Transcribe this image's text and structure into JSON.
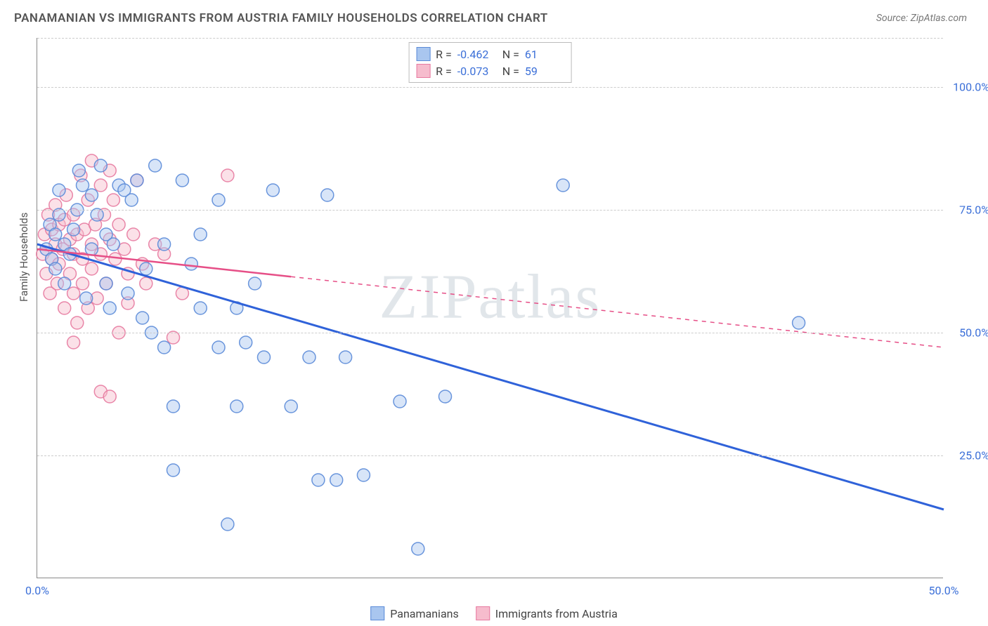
{
  "title": "PANAMANIAN VS IMMIGRANTS FROM AUSTRIA FAMILY HOUSEHOLDS CORRELATION CHART",
  "source": "Source: ZipAtlas.com",
  "ylabel": "Family Households",
  "watermark": "ZIPatlas",
  "chart": {
    "type": "scatter",
    "background_color": "#ffffff",
    "grid_color": "#cccccc",
    "axis_color": "#888888",
    "xlim": [
      0,
      50
    ],
    "ylim": [
      0,
      110
    ],
    "x_ticks": [
      {
        "val": 0,
        "label": "0.0%"
      },
      {
        "val": 50,
        "label": "50.0%"
      }
    ],
    "y_ticks": [
      {
        "val": 25,
        "label": "25.0%"
      },
      {
        "val": 50,
        "label": "50.0%"
      },
      {
        "val": 75,
        "label": "75.0%"
      },
      {
        "val": 100,
        "label": "100.0%"
      }
    ],
    "y_gridlines": [
      25,
      50,
      75,
      100,
      110
    ],
    "marker_radius": 9,
    "marker_opacity": 0.45,
    "marker_stroke_width": 1.5,
    "series": [
      {
        "name": "Panamanians",
        "fill": "#a9c6ef",
        "stroke": "#5b8bd8",
        "R": "-0.462",
        "N": "61",
        "trend": {
          "x1": 0,
          "y1": 68,
          "x2": 50,
          "y2": 14,
          "color": "#2f62d9",
          "width": 3,
          "solid_until_x": 50
        },
        "points": [
          [
            0.5,
            67
          ],
          [
            0.7,
            72
          ],
          [
            0.8,
            65
          ],
          [
            1.0,
            70
          ],
          [
            1.0,
            63
          ],
          [
            1.2,
            74
          ],
          [
            1.2,
            79
          ],
          [
            1.5,
            68
          ],
          [
            1.5,
            60
          ],
          [
            1.8,
            66
          ],
          [
            2.0,
            71
          ],
          [
            2.2,
            75
          ],
          [
            2.3,
            83
          ],
          [
            2.5,
            80
          ],
          [
            2.7,
            57
          ],
          [
            3.0,
            67
          ],
          [
            3.0,
            78
          ],
          [
            3.3,
            74
          ],
          [
            3.5,
            84
          ],
          [
            3.8,
            70
          ],
          [
            4.0,
            55
          ],
          [
            4.2,
            68
          ],
          [
            4.5,
            80
          ],
          [
            4.8,
            79
          ],
          [
            5.0,
            58
          ],
          [
            5.2,
            77
          ],
          [
            5.5,
            81
          ],
          [
            5.8,
            53
          ],
          [
            6.0,
            63
          ],
          [
            6.3,
            50
          ],
          [
            6.5,
            84
          ],
          [
            7.0,
            68
          ],
          [
            7.0,
            47
          ],
          [
            7.5,
            22
          ],
          [
            8.0,
            81
          ],
          [
            8.5,
            64
          ],
          [
            9.0,
            55
          ],
          [
            9.0,
            70
          ],
          [
            10.0,
            47
          ],
          [
            10.0,
            77
          ],
          [
            10.5,
            11
          ],
          [
            11.0,
            55
          ],
          [
            11.0,
            35
          ],
          [
            11.5,
            48
          ],
          [
            12.0,
            60
          ],
          [
            12.5,
            45
          ],
          [
            13.0,
            79
          ],
          [
            14.0,
            35
          ],
          [
            15.0,
            45
          ],
          [
            15.5,
            20
          ],
          [
            16.0,
            78
          ],
          [
            16.5,
            20
          ],
          [
            17.0,
            45
          ],
          [
            18.0,
            21
          ],
          [
            20.0,
            36
          ],
          [
            21.0,
            6
          ],
          [
            22.5,
            37
          ],
          [
            29.0,
            80
          ],
          [
            42.0,
            52
          ],
          [
            7.5,
            35
          ],
          [
            3.8,
            60
          ]
        ]
      },
      {
        "name": "Immigrants from Austria",
        "fill": "#f6bccd",
        "stroke": "#e77aa0",
        "R": "-0.073",
        "N": "59",
        "trend": {
          "x1": 0,
          "y1": 67,
          "x2": 50,
          "y2": 47,
          "color": "#e64f87",
          "width": 2.5,
          "solid_until_x": 14
        },
        "points": [
          [
            0.3,
            66
          ],
          [
            0.4,
            70
          ],
          [
            0.5,
            62
          ],
          [
            0.6,
            74
          ],
          [
            0.7,
            58
          ],
          [
            0.8,
            65
          ],
          [
            0.8,
            71
          ],
          [
            1.0,
            68
          ],
          [
            1.0,
            76
          ],
          [
            1.1,
            60
          ],
          [
            1.2,
            64
          ],
          [
            1.2,
            72
          ],
          [
            1.4,
            67
          ],
          [
            1.5,
            55
          ],
          [
            1.5,
            73
          ],
          [
            1.6,
            78
          ],
          [
            1.8,
            62
          ],
          [
            1.8,
            69
          ],
          [
            2.0,
            58
          ],
          [
            2.0,
            66
          ],
          [
            2.0,
            74
          ],
          [
            2.2,
            52
          ],
          [
            2.2,
            70
          ],
          [
            2.4,
            82
          ],
          [
            2.5,
            60
          ],
          [
            2.5,
            65
          ],
          [
            2.6,
            71
          ],
          [
            2.8,
            77
          ],
          [
            2.8,
            55
          ],
          [
            3.0,
            68
          ],
          [
            3.0,
            63
          ],
          [
            3.0,
            85
          ],
          [
            3.2,
            72
          ],
          [
            3.3,
            57
          ],
          [
            3.5,
            66
          ],
          [
            3.5,
            80
          ],
          [
            3.7,
            74
          ],
          [
            3.8,
            60
          ],
          [
            4.0,
            83
          ],
          [
            4.0,
            69
          ],
          [
            4.2,
            77
          ],
          [
            4.3,
            65
          ],
          [
            4.5,
            72
          ],
          [
            4.5,
            50
          ],
          [
            4.8,
            67
          ],
          [
            5.0,
            62
          ],
          [
            5.0,
            56
          ],
          [
            5.3,
            70
          ],
          [
            5.5,
            81
          ],
          [
            5.8,
            64
          ],
          [
            6.0,
            60
          ],
          [
            6.5,
            68
          ],
          [
            7.0,
            66
          ],
          [
            7.5,
            49
          ],
          [
            8.0,
            58
          ],
          [
            10.5,
            82
          ],
          [
            3.5,
            38
          ],
          [
            4.0,
            37
          ],
          [
            2.0,
            48
          ]
        ]
      }
    ]
  }
}
